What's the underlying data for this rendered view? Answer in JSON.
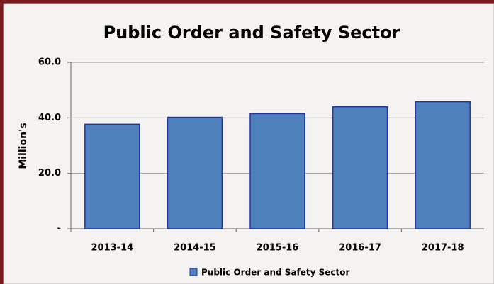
{
  "chart_data": {
    "type": "bar",
    "title": "Public Order and Safety Sector",
    "y_label": "Million's",
    "categories": [
      "2013-14",
      "2014-15",
      "2015-16",
      "2016-17",
      "2017-18"
    ],
    "series": [
      {
        "name": "Public Order and Safety Sector",
        "color": "#4f81bd",
        "values": [
          37.7,
          40.2,
          41.5,
          44.0,
          45.8
        ]
      }
    ],
    "ylim": [
      0,
      60
    ],
    "yticks": [
      {
        "value": 0,
        "label": "-"
      },
      {
        "value": 20,
        "label": "20.0"
      },
      {
        "value": 40,
        "label": "40.0"
      },
      {
        "value": 60,
        "label": "60.0"
      }
    ],
    "grid": true,
    "legend": "bottom"
  }
}
